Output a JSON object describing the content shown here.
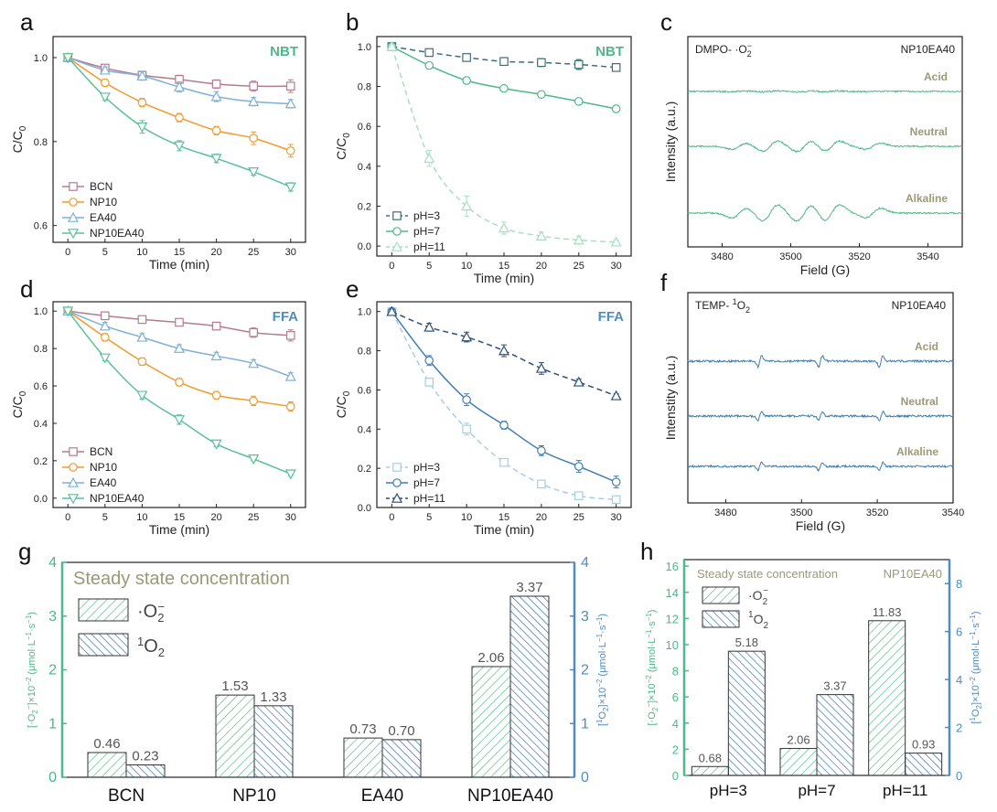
{
  "colors": {
    "BCN": "#b57b8f",
    "NP10": "#f29a2e",
    "EA40": "#7db0d6",
    "NP10EA40": "#5cbf9a",
    "ph3_b": "#3d6e7a",
    "ph7_b": "#4db889",
    "ph11_b": "#a8dfc2",
    "ph3_e": "#a6cde8",
    "ph7_e": "#3e7eb3",
    "ph11_e": "#2e4f78",
    "nbt_tag": "#4db889",
    "ffa_tag": "#4f8cc0",
    "epr_c": "#4db889",
    "epr_f": "#3e7eb3",
    "label_gray": "#9a9a78",
    "o2_bar": "#4db889",
    "singlet_bar": "#2f6aa3"
  },
  "chart_data": [
    {
      "id": "a",
      "type": "line",
      "panel_label": "a",
      "tag": "NBT",
      "xlabel": "Time (min)",
      "ylabel": "C/C0",
      "xlim": [
        -2,
        32
      ],
      "ylim": [
        0.56,
        1.05
      ],
      "xticks": [
        "0",
        "5",
        "10",
        "15",
        "20",
        "25",
        "30"
      ],
      "yticks": [
        "0.6",
        "0.8",
        "1.0"
      ],
      "x": [
        0,
        5,
        10,
        15,
        20,
        25,
        30
      ],
      "series": [
        {
          "name": "BCN",
          "marker": "square",
          "dash": false,
          "values": [
            1.0,
            0.975,
            0.958,
            0.948,
            0.937,
            0.932,
            0.932
          ],
          "err": [
            0.008,
            0.008,
            0.008,
            0.01,
            0.01,
            0.012,
            0.015
          ]
        },
        {
          "name": "NP10",
          "marker": "circle",
          "dash": false,
          "values": [
            1.0,
            0.94,
            0.893,
            0.857,
            0.826,
            0.808,
            0.778
          ],
          "err": [
            0.008,
            0.008,
            0.01,
            0.01,
            0.01,
            0.015,
            0.015
          ]
        },
        {
          "name": "EA40",
          "marker": "triangle-up",
          "dash": false,
          "values": [
            1.0,
            0.97,
            0.956,
            0.93,
            0.907,
            0.895,
            0.89
          ],
          "err": [
            0.008,
            0.008,
            0.01,
            0.012,
            0.012,
            0.01,
            0.01
          ]
        },
        {
          "name": "NP10EA40",
          "marker": "triangle-down",
          "dash": false,
          "values": [
            1.0,
            0.906,
            0.835,
            0.79,
            0.76,
            0.728,
            0.692
          ],
          "err": [
            0.008,
            0.008,
            0.015,
            0.012,
            0.01,
            0.008,
            0.01
          ]
        }
      ],
      "legend": [
        "BCN",
        "NP10",
        "EA40",
        "NP10EA40"
      ]
    },
    {
      "id": "b",
      "type": "line",
      "panel_label": "b",
      "tag": "NBT",
      "xlabel": "Time (min)",
      "ylabel": "C/C0",
      "xlim": [
        -2,
        32
      ],
      "ylim": [
        -0.05,
        1.05
      ],
      "xticks": [
        "0",
        "5",
        "10",
        "15",
        "20",
        "25",
        "30"
      ],
      "yticks": [
        "0.0",
        "0.2",
        "0.4",
        "0.6",
        "0.8",
        "1.0"
      ],
      "x": [
        0,
        5,
        10,
        15,
        20,
        25,
        30
      ],
      "series": [
        {
          "name": "pH=3",
          "marker": "square",
          "dash": true,
          "values": [
            1.0,
            0.97,
            0.945,
            0.925,
            0.92,
            0.91,
            0.895
          ],
          "err": [
            0.01,
            0.015,
            0.015,
            0.015,
            0.02,
            0.025,
            0.015
          ]
        },
        {
          "name": "pH=7",
          "marker": "circle",
          "dash": false,
          "values": [
            1.0,
            0.905,
            0.83,
            0.79,
            0.76,
            0.725,
            0.688
          ],
          "err": [
            0.01,
            0.01,
            0.01,
            0.01,
            0.015,
            0.015,
            0.015
          ]
        },
        {
          "name": "pH=11",
          "marker": "triangle-up",
          "dash": true,
          "values": [
            1.0,
            0.44,
            0.2,
            0.09,
            0.05,
            0.03,
            0.02
          ],
          "err": [
            0.01,
            0.04,
            0.05,
            0.03,
            0.02,
            0.02,
            0.01
          ]
        }
      ],
      "legend": [
        "pH=3",
        "pH=7",
        "pH=11"
      ]
    },
    {
      "id": "c",
      "type": "epr",
      "panel_label": "c",
      "title": "DMPO- ·O2−",
      "sample": "NP10EA40",
      "xlabel": "Field (G)",
      "ylabel": "Intensity (a.u.)",
      "xlim": [
        3470,
        3550
      ],
      "xticks": [
        "3480",
        "3500",
        "3520",
        "3540"
      ],
      "traces": [
        "Acid",
        "Neutral",
        "Alkaline"
      ],
      "peaks": [
        3485,
        3494,
        3504,
        3512,
        3524
      ],
      "amplitudes": [
        0.1,
        1.0,
        1.6
      ]
    },
    {
      "id": "d",
      "type": "line",
      "panel_label": "d",
      "tag": "FFA",
      "xlabel": "Time (min)",
      "ylabel": "C/C0",
      "xlim": [
        -2,
        32
      ],
      "ylim": [
        -0.05,
        1.05
      ],
      "xticks": [
        "0",
        "5",
        "10",
        "15",
        "20",
        "25",
        "30"
      ],
      "yticks": [
        "0.0",
        "0.2",
        "0.4",
        "0.6",
        "0.8",
        "1.0"
      ],
      "x": [
        0,
        5,
        10,
        15,
        20,
        25,
        30
      ],
      "series": [
        {
          "name": "BCN",
          "marker": "square",
          "dash": false,
          "values": [
            1.0,
            0.975,
            0.955,
            0.94,
            0.92,
            0.885,
            0.87
          ],
          "err": [
            0.01,
            0.01,
            0.01,
            0.01,
            0.02,
            0.025,
            0.03
          ]
        },
        {
          "name": "NP10",
          "marker": "circle",
          "dash": false,
          "values": [
            1.0,
            0.86,
            0.73,
            0.62,
            0.55,
            0.52,
            0.49
          ],
          "err": [
            0.01,
            0.02,
            0.02,
            0.02,
            0.02,
            0.025,
            0.025
          ]
        },
        {
          "name": "EA40",
          "marker": "triangle-up",
          "dash": false,
          "values": [
            1.0,
            0.92,
            0.86,
            0.8,
            0.76,
            0.72,
            0.65
          ],
          "err": [
            0.01,
            0.02,
            0.02,
            0.02,
            0.02,
            0.02,
            0.02
          ]
        },
        {
          "name": "NP10EA40",
          "marker": "triangle-down",
          "dash": false,
          "values": [
            1.0,
            0.75,
            0.55,
            0.42,
            0.29,
            0.21,
            0.13
          ],
          "err": [
            0.01,
            0.015,
            0.02,
            0.025,
            0.015,
            0.01,
            0.01
          ]
        }
      ],
      "legend": [
        "BCN",
        "NP10",
        "EA40",
        "NP10EA40"
      ]
    },
    {
      "id": "e",
      "type": "line",
      "panel_label": "e",
      "tag": "FFA",
      "xlabel": "Time (min)",
      "ylabel": "C/C0",
      "xlim": [
        -2,
        32
      ],
      "ylim": [
        0.0,
        1.05
      ],
      "xticks": [
        "0",
        "5",
        "10",
        "15",
        "20",
        "25",
        "30"
      ],
      "yticks": [
        "0.0",
        "0.2",
        "0.4",
        "0.6",
        "0.8",
        "1.0"
      ],
      "x": [
        0,
        5,
        10,
        15,
        20,
        25,
        30
      ],
      "series": [
        {
          "name": "pH=3",
          "marker": "square",
          "dash": true,
          "values": [
            1.0,
            0.64,
            0.4,
            0.23,
            0.12,
            0.06,
            0.04
          ],
          "err": [
            0.01,
            0.02,
            0.03,
            0.02,
            0.015,
            0.01,
            0.01
          ]
        },
        {
          "name": "pH=7",
          "marker": "circle",
          "dash": false,
          "values": [
            1.0,
            0.75,
            0.55,
            0.42,
            0.29,
            0.21,
            0.13
          ],
          "err": [
            0.01,
            0.025,
            0.03,
            0.02,
            0.025,
            0.03,
            0.03
          ]
        },
        {
          "name": "pH=11",
          "marker": "triangle-up",
          "dash": true,
          "values": [
            1.0,
            0.92,
            0.87,
            0.8,
            0.71,
            0.64,
            0.57
          ],
          "err": [
            0.01,
            0.02,
            0.025,
            0.03,
            0.03,
            0.015,
            0.01
          ]
        }
      ],
      "legend": [
        "pH=3",
        "pH=7",
        "pH=11"
      ]
    },
    {
      "id": "f",
      "type": "epr",
      "panel_label": "f",
      "title": "TEMP- 1O2",
      "sample": "NP10EA40",
      "xlabel": "Field (G)",
      "ylabel": "Intenstity (a.u.)",
      "xlim": [
        3470,
        3540
      ],
      "xticks": [
        "3480",
        "3500",
        "3520",
        "3540"
      ],
      "traces": [
        "Acid",
        "Neutral",
        "Alkaline"
      ],
      "peaks": [
        3489,
        3505,
        3521
      ],
      "amplitudes": [
        1.0,
        0.8,
        0.7
      ]
    },
    {
      "id": "g",
      "type": "bar",
      "panel_label": "g",
      "title": "Steady state concentration",
      "categories": [
        "BCN",
        "NP10",
        "EA40",
        "NP10EA40"
      ],
      "series": [
        {
          "name": "·O2−",
          "values": [
            0.46,
            1.53,
            0.73,
            2.06
          ]
        },
        {
          "name": "1O2",
          "values": [
            0.23,
            1.33,
            0.7,
            3.37
          ]
        }
      ],
      "ylabel_left": "[·O2−]×10−2 (μmol·L−1·s−1)",
      "ylabel_right": "[1O2]×10−2 (μmol·L−1·s−1)",
      "ylim_left": [
        0,
        4
      ],
      "ylim_right": [
        0,
        4
      ],
      "yticks_left": [
        "0",
        "1",
        "2",
        "3",
        "4"
      ],
      "yticks_right": [
        "0",
        "1",
        "2",
        "3",
        "4"
      ],
      "value_labels": [
        "0.46",
        "0.23",
        "1.53",
        "1.33",
        "0.73",
        "0.70",
        "2.06",
        "3.37"
      ]
    },
    {
      "id": "h",
      "type": "bar",
      "panel_label": "h",
      "title": "Steady state concentration",
      "sample": "NP10EA40",
      "categories": [
        "pH=3",
        "pH=7",
        "pH=11"
      ],
      "series": [
        {
          "name": "·O2−",
          "axis": "left",
          "values": [
            0.68,
            2.06,
            11.83
          ]
        },
        {
          "name": "1O2",
          "axis": "right",
          "values": [
            5.18,
            3.37,
            0.93
          ]
        }
      ],
      "ylabel_left": "[·O2−]×10−2 (μmol·L−1·s−1)",
      "ylabel_right": "[1O2]×10−2 (μmol·L−1·s−1)",
      "ylim_left": [
        0,
        16.5
      ],
      "ylim_right": [
        0,
        9
      ],
      "yticks_left": [
        "0",
        "2",
        "4",
        "6",
        "8",
        "10",
        "12",
        "14",
        "16"
      ],
      "yticks_right": [
        "0",
        "2",
        "4",
        "6",
        "8"
      ],
      "value_labels": [
        "0.68",
        "5.18",
        "2.06",
        "3.37",
        "11.83",
        "0.93"
      ]
    }
  ]
}
